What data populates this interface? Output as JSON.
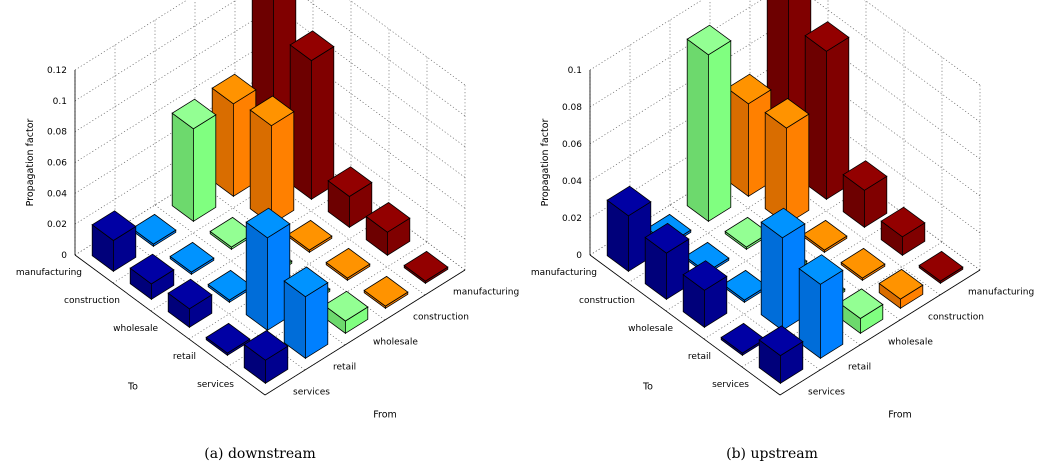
{
  "chart_data": [
    {
      "type": "bar3d",
      "caption": "(a) downstream",
      "zlabel": "Propagation factor",
      "xlabel": "To",
      "ylabel": "From",
      "zlim": [
        0,
        0.12
      ],
      "zticks": [
        "0",
        "0.02",
        "0.04",
        "0.06",
        "0.08",
        "0.1",
        "0.12"
      ],
      "to_categories": [
        "manufacturing",
        "construction",
        "wholesale",
        "retail",
        "services"
      ],
      "from_categories": [
        "services",
        "retail",
        "wholesale",
        "construction",
        "manufacturing"
      ],
      "series": [
        {
          "color": "#00008f",
          "values": [
            0.02,
            0.01,
            0.012,
            0.0,
            0.015
          ]
        },
        {
          "color": "#0080ff",
          "values": [
            0.0,
            0.0,
            0.0,
            0.06,
            0.04
          ]
        },
        {
          "color": "#80ff80",
          "values": [
            0.06,
            0.0,
            0.0,
            0.0,
            0.008
          ]
        },
        {
          "color": "#ff8000",
          "values": [
            0.06,
            0.064,
            0.0,
            0.0,
            0.0
          ]
        },
        {
          "color": "#800000",
          "values": [
            0.12,
            0.09,
            0.02,
            0.015,
            0.0
          ]
        }
      ]
    },
    {
      "type": "bar3d",
      "caption": "(b) upstream",
      "zlabel": "Propagation factor",
      "xlabel": "To",
      "ylabel": "From",
      "zlim": [
        0,
        0.1
      ],
      "zticks": [
        "0",
        "0.02",
        "0.04",
        "0.06",
        "0.08",
        "0.1"
      ],
      "to_categories": [
        "manufacturing",
        "construction",
        "wholesale",
        "retail",
        "services"
      ],
      "from_categories": [
        "services",
        "retail",
        "wholesale",
        "construction",
        "manufacturing"
      ],
      "series": [
        {
          "color": "#00008f",
          "values": [
            0.03,
            0.025,
            0.02,
            0.0,
            0.015
          ]
        },
        {
          "color": "#0080ff",
          "values": [
            0.0,
            0.0,
            0.0,
            0.05,
            0.04
          ]
        },
        {
          "color": "#80ff80",
          "values": [
            0.09,
            0.0,
            0.0,
            0.0,
            0.008
          ]
        },
        {
          "color": "#ff8000",
          "values": [
            0.05,
            0.052,
            0.0,
            0.0,
            0.005
          ]
        },
        {
          "color": "#800000",
          "values": [
            0.12,
            0.08,
            0.02,
            0.01,
            0.0
          ]
        }
      ]
    }
  ]
}
